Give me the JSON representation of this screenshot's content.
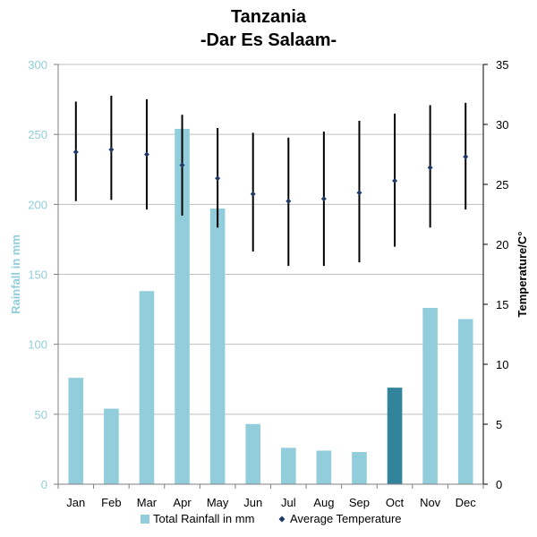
{
  "chart_data": {
    "type": "bar+errorbar",
    "title": "Tanzania",
    "subtitle": "-Dar Es Salaam-",
    "categories": [
      "Jan",
      "Feb",
      "Mar",
      "Apr",
      "May",
      "Jun",
      "Jul",
      "Aug",
      "Sep",
      "Oct",
      "Nov",
      "Dec"
    ],
    "y_left": {
      "label": "Rainfall in mm",
      "range": [
        0,
        300
      ],
      "ticks": [
        0,
        50,
        100,
        150,
        200,
        250,
        300
      ]
    },
    "y_right": {
      "label": "Temperature/C°",
      "range": [
        0,
        35
      ],
      "ticks": [
        0,
        5,
        10,
        15,
        20,
        25,
        30,
        35
      ]
    },
    "series": [
      {
        "name": "Total Rainfall in mm",
        "kind": "bar",
        "axis": "left",
        "values": [
          76,
          54,
          138,
          254,
          197,
          43,
          26,
          24,
          23,
          69,
          126,
          118
        ],
        "highlight_index": 9
      },
      {
        "name": "Average Temperature",
        "kind": "point-with-range",
        "axis": "right",
        "values": [
          27.7,
          27.9,
          27.5,
          26.6,
          25.5,
          24.2,
          23.6,
          23.8,
          24.3,
          25.3,
          26.4,
          27.3
        ],
        "max": [
          31.9,
          32.4,
          32.1,
          30.8,
          29.7,
          29.3,
          28.9,
          29.4,
          30.3,
          30.9,
          31.6,
          31.8
        ],
        "min": [
          23.6,
          23.7,
          22.9,
          22.4,
          21.4,
          19.4,
          18.2,
          18.2,
          18.5,
          19.8,
          21.4,
          22.9
        ]
      }
    ],
    "grid": true,
    "legend": "bottom",
    "colors": {
      "bar": "#92CDDC",
      "bar_highlight": "#31849B",
      "left_axis": "#92CDDC",
      "marker": "#1F3864",
      "errorbar": "#000000",
      "grid": "#BFBFBF"
    }
  }
}
